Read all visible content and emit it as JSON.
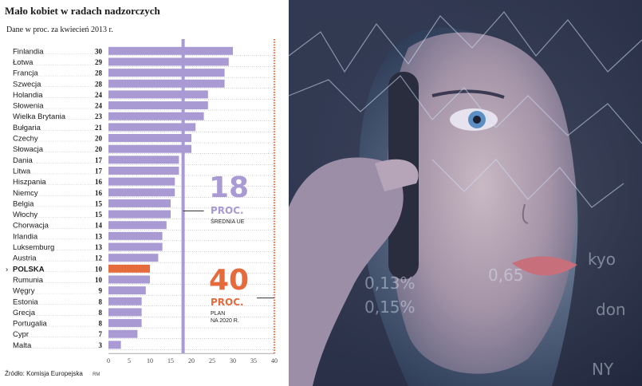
{
  "chart_data": {
    "type": "bar",
    "orientation": "horizontal",
    "title": "Mało kobiet w radach nadzorczych",
    "subtitle": "Dane w proc. za kwiecień 2013 r.",
    "categories": [
      "Finlandia",
      "Łotwa",
      "Francja",
      "Szwecja",
      "Holandia",
      "Słowenia",
      "Wielka Brytania",
      "Bułgaria",
      "Czechy",
      "Słowacja",
      "Dania",
      "Litwa",
      "Hiszpania",
      "Niemcy",
      "Belgia",
      "Włochy",
      "Chorwacja",
      "Irlandia",
      "Luksemburg",
      "Austria",
      "POLSKA",
      "Rumunia",
      "Węgry",
      "Estonia",
      "Grecja",
      "Portugalia",
      "Cypr",
      "Malta"
    ],
    "value_labels": [
      "30",
      "29",
      "28",
      "28",
      "24",
      "24",
      "23",
      "21",
      "20",
      "20",
      "17",
      "17",
      "16",
      "16",
      "15",
      "15",
      "14",
      "13",
      "13",
      "12",
      "10",
      "10",
      "9",
      "8",
      "8",
      "8",
      "7",
      "3"
    ],
    "values": [
      30,
      29,
      28,
      28,
      24,
      24,
      23,
      21,
      20,
      20,
      17,
      17,
      16,
      16,
      15,
      15,
      14,
      13,
      13,
      12,
      10,
      10,
      9,
      8,
      8,
      8,
      7,
      3
    ],
    "highlight": "POLSKA",
    "colors": {
      "bar": "#a99ad4",
      "highlight": "#e56a3c",
      "average_line": "#a99ad4",
      "plan_line": "#e56a3c",
      "accent_text": "#e56a3c"
    },
    "xlim": [
      0,
      40
    ],
    "xticks": [
      "0",
      "5",
      "10",
      "15",
      "20",
      "25",
      "30",
      "35",
      "40"
    ],
    "reference_lines": [
      {
        "value": 18,
        "number": "18",
        "unit": "PROC.",
        "label": "ŚREDNIA UE",
        "style": "solid"
      },
      {
        "value": 40,
        "number": "40",
        "unit": "PROC.",
        "label": "PLAN NA 2020 R.",
        "label_lines": [
          "PLAN",
          "NA 2020 R."
        ],
        "style": "dotted"
      }
    ]
  },
  "source": {
    "text": "Źródło: Komisja Europejska",
    "initials": "RM"
  }
}
